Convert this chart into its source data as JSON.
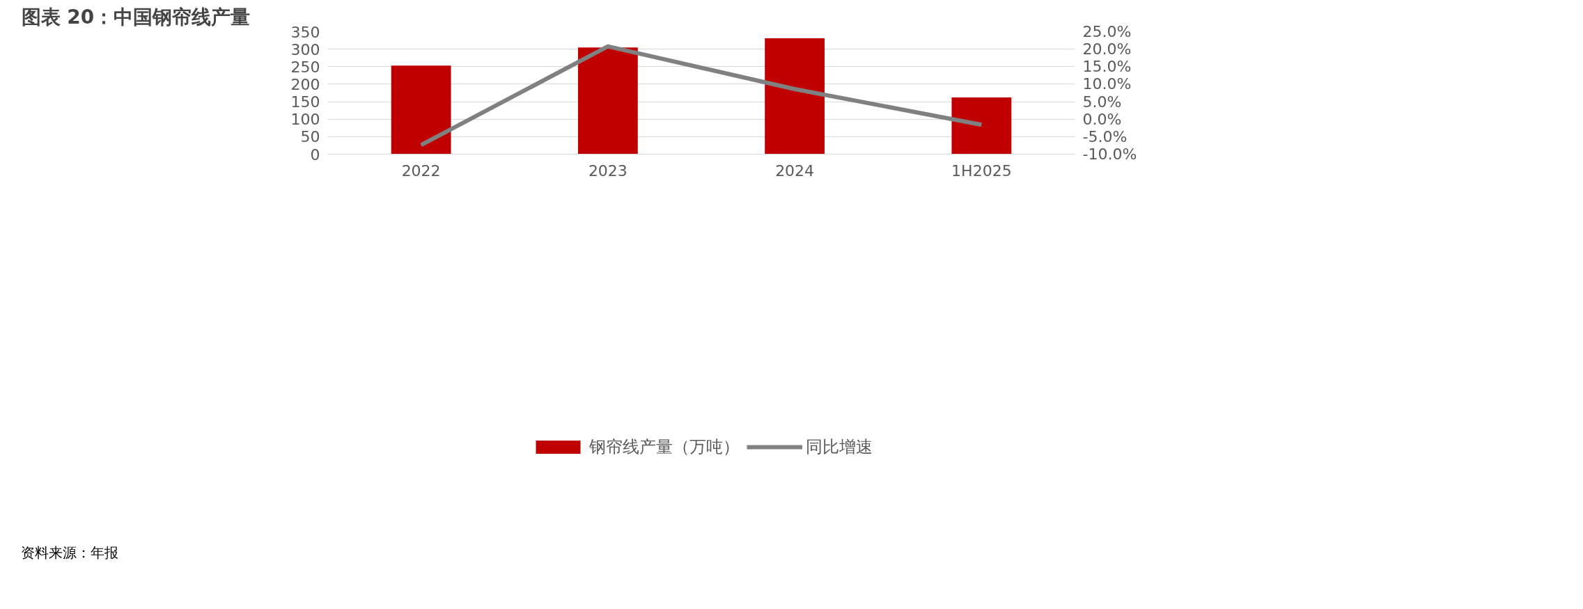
{
  "chart_data": {
    "type": "bar",
    "title": "图表 20：中国钢帘线产量",
    "categories": [
      "2022",
      "2023",
      "2024",
      "1H2025"
    ],
    "series": [
      {
        "name": "钢帘线产量（万吨）",
        "color": "#c00000",
        "values": [
          253,
          305,
          331,
          162
        ]
      },
      {
        "name": "同比增速",
        "type": "line",
        "axis": "y2",
        "color": "#808080",
        "values": [
          -7.4,
          20.8,
          8.6,
          -1.6
        ]
      }
    ],
    "ylim": [
      0,
      350
    ],
    "yticks": [
      0,
      50,
      100,
      150,
      200,
      250,
      300,
      350
    ],
    "y2lim": [
      -10,
      25
    ],
    "y2ticks": [
      {
        "value": -10,
        "label": "-10.0%"
      },
      {
        "value": -5,
        "label": "-5.0%"
      },
      {
        "value": 0,
        "label": "0.0%"
      },
      {
        "value": 5,
        "label": "5.0%"
      },
      {
        "value": 10,
        "label": "10.0%"
      },
      {
        "value": 15,
        "label": "15.0%"
      },
      {
        "value": 20,
        "label": "20.0%"
      },
      {
        "value": 25,
        "label": "25.0%"
      }
    ],
    "grid": "y",
    "legend": "bottom",
    "line_style": "solid",
    "annotations": [
      "资料来源：年报"
    ]
  }
}
